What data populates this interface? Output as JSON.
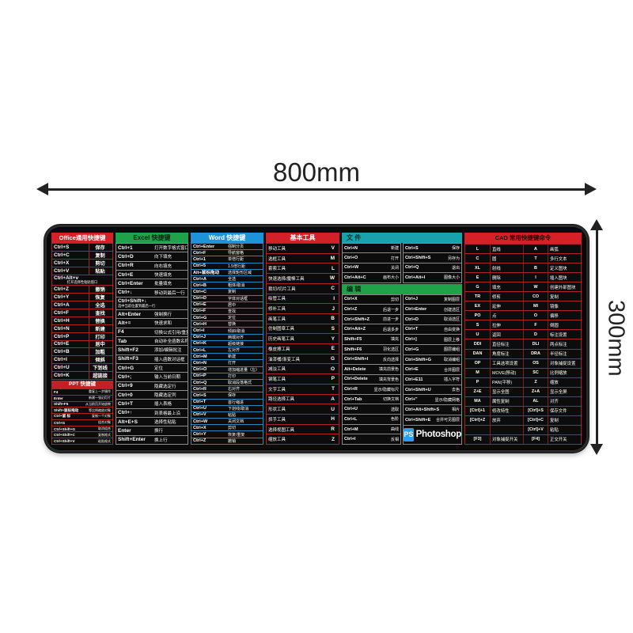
{
  "annotations": {
    "width_label": "800mm",
    "height_label": "300mm"
  },
  "colors": {
    "office_header": "#d42127",
    "ppt_header": "#c41f25",
    "excel_header": "#1fa24a",
    "word_header": "#1e93d7",
    "tools_header": "#d42127",
    "file_header": "#18a2ab",
    "edit_header": "#1fa24a",
    "cad_header": "#d42127",
    "ps_blue": "#2aa0e8",
    "pad_surface": "#0c0c0c",
    "dimension_ink": "#222222"
  },
  "pad": {
    "office": {
      "title": "Office通用快捷键",
      "rows": [
        {
          "k": "Ctrl+S",
          "v": "保存"
        },
        {
          "k": "Ctrl+C",
          "v": "复制"
        },
        {
          "k": "Ctrl+X",
          "v": "剪切"
        },
        {
          "k": "Ctrl+V",
          "v": "粘贴"
        },
        {
          "k": "Ctrl+Alt+v",
          "sub": "打开选择性粘贴窗口"
        },
        {
          "k": "Ctrl+Z",
          "v": "撤销"
        },
        {
          "k": "Ctrl+Y",
          "v": "恢复"
        },
        {
          "k": "Ctrl+A",
          "v": "全选"
        },
        {
          "k": "Ctrl+F",
          "v": "查找"
        },
        {
          "k": "Ctrl+H",
          "v": "替换"
        },
        {
          "k": "Ctrl+N",
          "v": "新建"
        },
        {
          "k": "Ctrl+P",
          "v": "打印"
        },
        {
          "k": "Ctrl+E",
          "v": "居中"
        },
        {
          "k": "Ctrl+B",
          "v": "加粗"
        },
        {
          "k": "Ctrl+I",
          "v": "倾斜"
        },
        {
          "k": "Ctrl+U",
          "v": "下划线"
        },
        {
          "k": "Ctrl+K",
          "v": "超链接"
        }
      ]
    },
    "ppt": {
      "title": "PPT 快捷键",
      "rows": [
        {
          "k": "F4",
          "v": "重复上一步操作"
        },
        {
          "k": "Enter",
          "v": "新建一张幻灯片"
        },
        {
          "k": "Shift+F5",
          "v": "从当前页开始放映"
        },
        {
          "k": "Shift+鼠标拖动",
          "v": "等比例缩放对象"
        },
        {
          "k": "Ctrl+鼠 标",
          "v": "复制一个对象"
        },
        {
          "k": "Ctrl+G",
          "v": "组合对象"
        },
        {
          "k": "Ctrl+Shift+G",
          "v": "取消组合"
        },
        {
          "k": "Ctrl+Shift+C",
          "v": "复制格式"
        },
        {
          "k": "Ctrl+Shift+V",
          "v": "粘贴格式"
        }
      ]
    },
    "excel": {
      "title": "Excel 快捷键",
      "rows": [
        {
          "k": "Ctrl+1",
          "v": "打开数字格式窗口"
        },
        {
          "k": "Ctrl+D",
          "v": "向下填充"
        },
        {
          "k": "Ctrl+R",
          "v": "向右填充"
        },
        {
          "k": "Ctrl+E",
          "v": "快速填充"
        },
        {
          "k": "Ctrl+Enter",
          "v": "批量填充"
        },
        {
          "k": "Ctrl+↓",
          "v": "移动到最后一行"
        },
        {
          "k": "Ctrl+Shift+↓",
          "sub": "选中当前位置到最后一行"
        },
        {
          "k": "Alt+Enter",
          "v": "强制换行"
        },
        {
          "k": "Alt+=",
          "v": "快速求和"
        },
        {
          "k": "F4",
          "v": "切换公式引用/重复上"
        },
        {
          "k": "Tab",
          "v": "自动补全函数名称"
        },
        {
          "k": "Shift+F2",
          "v": "添加/编辑批注"
        },
        {
          "k": "Shift+F3",
          "v": "插入函数对话框"
        },
        {
          "k": "Ctrl+G",
          "v": "定位"
        },
        {
          "k": "Ctrl+;",
          "v": "输入当前日期"
        },
        {
          "k": "Ctrl+9",
          "v": "隐藏选定行"
        },
        {
          "k": "Ctrl+0",
          "v": "隐藏选定列"
        },
        {
          "k": "Ctrl+T",
          "v": "插入表格"
        },
        {
          "k": "Ctrl+↑",
          "v": "到表格最上沿"
        },
        {
          "k": "Alt+E+S",
          "v": "选择性粘贴"
        },
        {
          "k": "Enter",
          "v": "换行"
        },
        {
          "k": "Shift+Enter",
          "v": "换上行"
        }
      ]
    },
    "word": {
      "title": "Word 快捷键",
      "rows": [
        {
          "k": "Ctrl+Enter",
          "v": "强制分页"
        },
        {
          "k": "Ctrl+F",
          "v": "导航窗格"
        },
        {
          "k": "Ctrl+1",
          "v": "单倍行距"
        },
        {
          "k": "Ctrl+5",
          "v": "1.5倍行距"
        },
        {
          "k": "Alt+鼠标拖动",
          "v": "选择矩形区域"
        },
        {
          "k": "Ctrl+A",
          "v": "全选"
        },
        {
          "k": "Ctrl+B",
          "v": "粗体/取消"
        },
        {
          "k": "Ctrl+C",
          "v": "复制"
        },
        {
          "k": "Ctrl+D",
          "v": "字体对话框"
        },
        {
          "k": "Ctrl+E",
          "v": "居中"
        },
        {
          "k": "Ctrl+F",
          "v": "查找"
        },
        {
          "k": "Ctrl+G",
          "v": "定位"
        },
        {
          "k": "Ctrl+H",
          "v": "替换"
        },
        {
          "k": "Ctrl+I",
          "v": "倾斜/取消"
        },
        {
          "k": "Ctrl+J",
          "v": "两端对齐"
        },
        {
          "k": "Ctrl+K",
          "v": "超级链接"
        },
        {
          "k": "Ctrl+L",
          "v": "左对齐"
        },
        {
          "k": "Ctrl+M",
          "v": "新建"
        },
        {
          "k": "Ctrl+N",
          "v": "打开"
        },
        {
          "k": "Ctrl+O",
          "v": "增加缩进量（左）"
        },
        {
          "k": "Ctrl+P",
          "v": "打印"
        },
        {
          "k": "Ctrl+Q",
          "v": "取消段落格式"
        },
        {
          "k": "Ctrl+R",
          "v": "右对齐"
        },
        {
          "k": "Ctrl+S",
          "v": "保存"
        },
        {
          "k": "Ctrl+T",
          "v": "首行缩进"
        },
        {
          "k": "Ctrl+U",
          "v": "下划线/取消"
        },
        {
          "k": "Ctrl+V",
          "v": "粘贴"
        },
        {
          "k": "Ctrl+W",
          "v": "关闭文档"
        },
        {
          "k": "Ctrl+X",
          "v": "剪切"
        },
        {
          "k": "Ctrl+Y",
          "v": "恢复/重复"
        },
        {
          "k": "Ctrl+Z",
          "v": "撤销"
        }
      ]
    },
    "tools": {
      "title": "基本工具",
      "rows": [
        {
          "k": "V",
          "v": "移动工具"
        },
        {
          "k": "M",
          "v": "选框工具"
        },
        {
          "k": "L",
          "v": "套索工具"
        },
        {
          "k": "W",
          "v": "快速选择/魔棒工具"
        },
        {
          "k": "C",
          "v": "裁切/切片工具"
        },
        {
          "k": "I",
          "v": "吸管工具"
        },
        {
          "k": "J",
          "v": "修补工具"
        },
        {
          "k": "B",
          "v": "画笔工具"
        },
        {
          "k": "S",
          "v": "仿制图章工具"
        },
        {
          "k": "Y",
          "v": "历史画笔工具"
        },
        {
          "k": "E",
          "v": "橡皮擦工具"
        },
        {
          "k": "G",
          "v": "油漆桶/渐变工具"
        },
        {
          "k": "O",
          "v": "减淡工具"
        },
        {
          "k": "P",
          "v": "钢笔工具"
        },
        {
          "k": "T",
          "v": "文字工具"
        },
        {
          "k": "A",
          "v": "路径选择工具"
        },
        {
          "k": "U",
          "v": "形状工具"
        },
        {
          "k": "H",
          "v": "抓手工具"
        },
        {
          "k": "R",
          "v": "选择视图工具"
        },
        {
          "k": "Z",
          "v": "缩放工具"
        }
      ]
    },
    "file": {
      "title": "文 件",
      "left": [
        {
          "k": "Ctrl+N",
          "v": "新建"
        },
        {
          "k": "Ctrl+O",
          "v": "打开"
        },
        {
          "k": "Ctrl+W",
          "v": "关闭"
        },
        {
          "k": "Ctrl+Ait+C",
          "v": "画布大小"
        }
      ],
      "right": [
        {
          "k": "Ctrl+S",
          "v": "保存"
        },
        {
          "k": "Ctrl+Shift+S",
          "v": "另存为"
        },
        {
          "k": "Ctrl+Q",
          "v": "退出"
        },
        {
          "k": "Ctrl+Ait+I",
          "v": "图像大小"
        }
      ]
    },
    "edit": {
      "title": "编 辑",
      "left": [
        {
          "k": "Ctrl+X",
          "v": "剪切"
        },
        {
          "k": "Ctrl+Z",
          "v": "后退一步"
        },
        {
          "k": "Ctrl+Shift+Z",
          "v": "前进一步"
        },
        {
          "k": "Ctrl+Ait+Z",
          "v": "后退多步"
        },
        {
          "k": "Shift+F5",
          "v": "填充"
        },
        {
          "k": "Shift+F6",
          "v": "羽化选区"
        },
        {
          "k": "Ctrl+Shift+I",
          "v": "反向选择"
        },
        {
          "k": "Alt+Delete",
          "v": "填充前景色"
        },
        {
          "k": "Ctrl+Delete",
          "v": "填充背景色"
        },
        {
          "k": "Ctrl+R",
          "v": "显示/隐藏标尺"
        },
        {
          "k": "Ctrl+Tab",
          "v": "切换文档"
        },
        {
          "k": "Ctrl+U",
          "v": "选取"
        },
        {
          "k": "Ctrl+L",
          "v": "色阶"
        },
        {
          "k": "Ctrl+M",
          "v": "曲线"
        },
        {
          "k": "Ctrl+I",
          "v": "反相"
        }
      ],
      "right": [
        {
          "k": "Ctrl+J",
          "v": "复制图层"
        },
        {
          "k": "Ctrl+Enter",
          "v": "创建选区"
        },
        {
          "k": "Ctrl+D",
          "v": "取消选区"
        },
        {
          "k": "Ctrl+T",
          "v": "自由变换"
        },
        {
          "k": "Ctrl+]",
          "v": "图层上移"
        },
        {
          "k": "Ctrl+G",
          "v": "图层编组"
        },
        {
          "k": "Ctrl+Shift+G",
          "v": "取消编组"
        },
        {
          "k": "Ctrl+E",
          "v": "合并图层"
        },
        {
          "k": "Ctrl+E11",
          "v": "插入字符"
        },
        {
          "k": "Ctrl+Shift+U",
          "v": "去色"
        },
        {
          "k": "Ctrl+\"",
          "v": "显示/隐藏网格"
        },
        {
          "k": "Ctrl+Alt+Shift+S",
          "v": "相片"
        },
        {
          "k": "Ctrl+Shift+E",
          "v": "合并可见图层"
        }
      ]
    },
    "cad": {
      "title": "CAD 常用快捷键命令",
      "rows": [
        [
          "L",
          "直线",
          "A",
          "画弧"
        ],
        [
          "C",
          "圆",
          "T",
          "多行文本"
        ],
        [
          "XL",
          "射线",
          "B",
          "定义图块"
        ],
        [
          "E",
          "删除",
          "I",
          "插入图块"
        ],
        [
          "G",
          "填充",
          "W",
          "创建外部图块"
        ],
        [
          "TR",
          "修剪",
          "CO",
          "复制"
        ],
        [
          "EX",
          "延伸",
          "MI",
          "镜像"
        ],
        [
          "PO",
          "点",
          "O",
          "偏移"
        ],
        [
          "S",
          "拉伸",
          "F",
          "倒圆"
        ],
        [
          "U",
          "返回",
          "D",
          "标注设置"
        ],
        [
          "DDI",
          "直径标注",
          "DLI",
          "两点标注"
        ],
        [
          "DAN",
          "角度标注",
          "DRA",
          "半径标注"
        ],
        [
          "OP",
          "工具选项设置",
          "OS",
          "对象捕捉设置"
        ],
        [
          "M",
          "MOVE(移动)",
          "SC",
          "比例缩放"
        ],
        [
          "P",
          "PAN(平移)",
          "Z",
          "缩放"
        ],
        [
          "Z+E",
          "显示全图",
          "Z+A",
          "显示全屏"
        ],
        [
          "MA",
          "属性复制",
          "AL",
          "对齐"
        ],
        [
          "[Ctrl]+1",
          "修改特性",
          "[Ctrl]+S",
          "保存文件"
        ],
        [
          "[Ctrl]+Z",
          "放弃",
          "[Ctrl]+C",
          "复制"
        ],
        [
          "",
          "",
          "[Ctrl]+V",
          "粘贴"
        ],
        [
          "[F3]",
          "对象捕捉开关",
          "[F4]",
          "正交开关"
        ]
      ]
    },
    "logo": {
      "badge": "PS",
      "text": "Photoshop"
    }
  }
}
